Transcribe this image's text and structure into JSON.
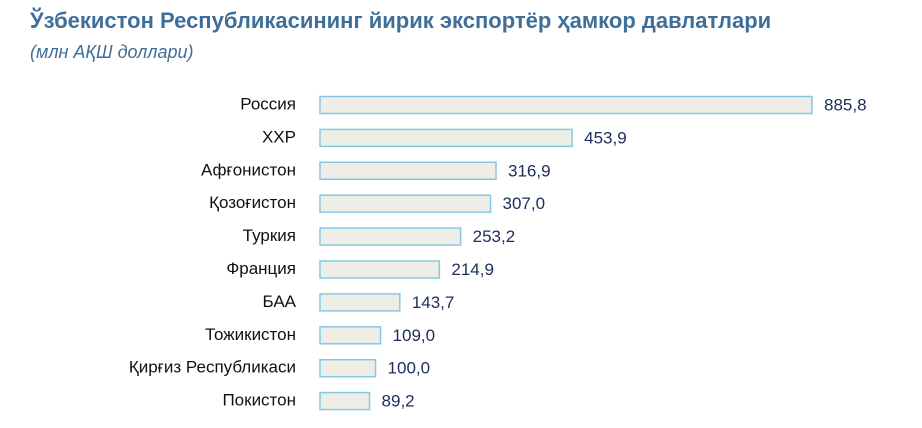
{
  "chart_data": {
    "type": "barh",
    "title": "Ўзбекистон Республикасининг йирик экспортёр ҳамкор давлатлари",
    "subtitle": "(млн АҚШ доллари)",
    "categories": [
      "Россия",
      "ХХР",
      "Афғонистон",
      "Қозоғистон",
      "Туркия",
      "Франция",
      "БАА",
      "Тожикистон",
      "Қирғиз Республикаси",
      "Покистон"
    ],
    "values": [
      885.8,
      453.9,
      316.9,
      307.0,
      253.2,
      214.9,
      143.7,
      109.0,
      100.0,
      89.2
    ],
    "value_labels": [
      "885,8",
      "453,9",
      "316,9",
      "307,0",
      "253,2",
      "214,9",
      "143,7",
      "109,0",
      "100,0",
      "89,2"
    ],
    "color": "#efeee6",
    "edge_color": "#86c8e4"
  }
}
